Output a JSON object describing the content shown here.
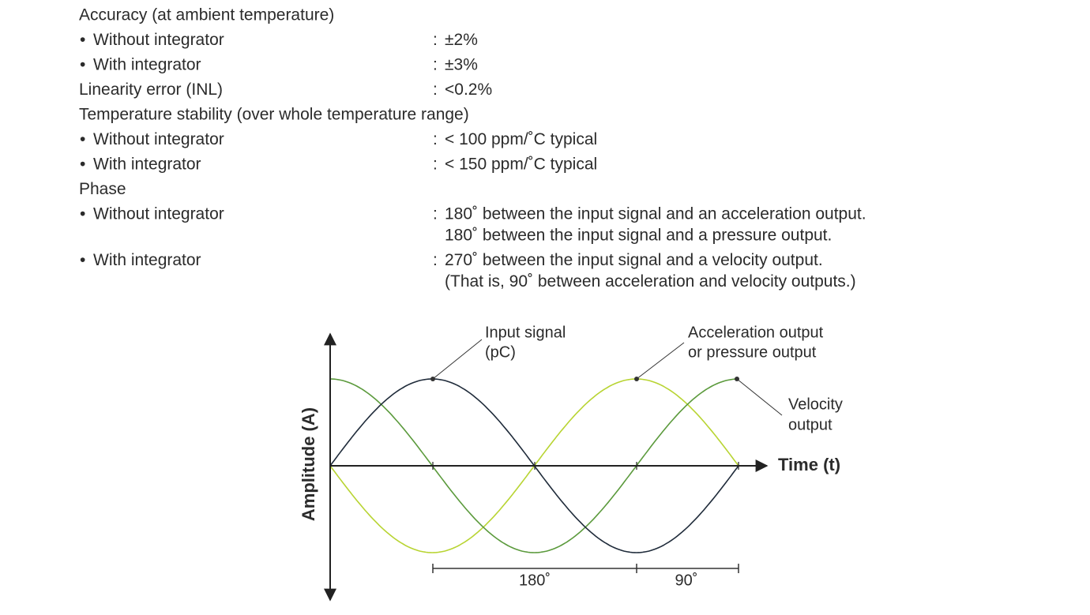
{
  "bullet": "•",
  "separator": ":",
  "specs": [
    {
      "heading": "Accuracy (at ambient temperature)",
      "items": [
        {
          "label": "Without integrator",
          "lines": [
            "±2%"
          ]
        },
        {
          "label": "With integrator",
          "lines": [
            "±3%"
          ]
        }
      ]
    },
    {
      "heading": "Linearity error (INL)",
      "lines": [
        "<0.2%"
      ]
    },
    {
      "heading": "Temperature stability (over whole temperature range)",
      "items": [
        {
          "label": "Without integrator",
          "lines": [
            "< 100 ppm/˚C typical"
          ]
        },
        {
          "label": "With integrator",
          "lines": [
            "< 150 ppm/˚C typical"
          ]
        }
      ]
    },
    {
      "heading": "Phase",
      "items": [
        {
          "label": "Without integrator",
          "lines": [
            "180˚ between the input signal and an acceleration output.",
            "180˚ between the input signal and a pressure output."
          ]
        },
        {
          "label": "With integrator",
          "lines": [
            "270˚ between the input signal and a velocity output.",
            "(That is, 90˚ between acceleration and velocity outputs.)"
          ]
        }
      ]
    }
  ],
  "diagram": {
    "y_axis_label": "Amplitude (A)",
    "x_axis_label": "Time (t)",
    "input_label": [
      "Input signal",
      "(pC)"
    ],
    "acceleration_label": [
      "Acceleration output",
      "or pressure output"
    ],
    "velocity_label": [
      "Velocity",
      "output"
    ],
    "span_labels": [
      "180˚",
      "90˚"
    ]
  }
}
